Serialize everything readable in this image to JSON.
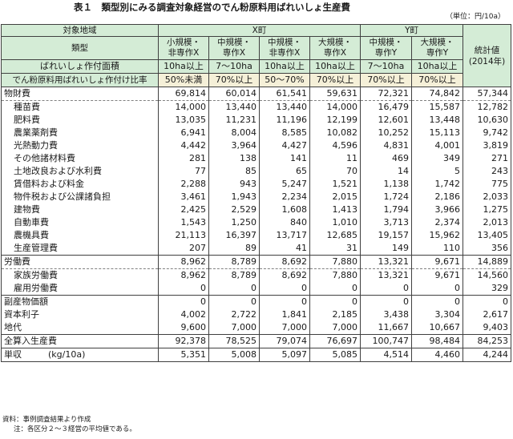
{
  "title": "表１　類型別にみる調査対象経営のでん粉原料用ばれいしょ生産費",
  "unit": "（単位：円/10a）",
  "header": {
    "region_label": "対象地域",
    "type_label": "類型",
    "area_label": "ばれいしょ作付面積",
    "ratio_label": "でん粉原料用ばれいしょ作付け比率",
    "town_x": "X町",
    "town_y": "Y町",
    "stat_label": "統計値\n(2014年)",
    "columns": [
      {
        "type": "小規模・\n非専作X",
        "area": "10ha以上",
        "ratio": "50%未満"
      },
      {
        "type": "中規模・\n専作X",
        "area": "7～10ha",
        "ratio": "70%以上"
      },
      {
        "type": "中規模・\n非専作X",
        "area": "10ha以上",
        "ratio": "50～70%"
      },
      {
        "type": "大規模・\n専作X",
        "area": "10ha以上",
        "ratio": "70%以上"
      },
      {
        "type": "中規模・\n専作Y",
        "area": "7～10ha",
        "ratio": "70%以上"
      },
      {
        "type": "大規模・\n専作Y",
        "area": "10ha以上",
        "ratio": "70%以上"
      }
    ]
  },
  "rows": [
    {
      "label": "物財費",
      "values": [
        "69,814",
        "60,014",
        "61,541",
        "59,631",
        "72,321",
        "74,842",
        "57,344"
      ]
    },
    {
      "label": "種苗費",
      "values": [
        "14,000",
        "13,440",
        "13,440",
        "14,000",
        "16,479",
        "15,587",
        "12,782"
      ]
    },
    {
      "label": "肥料費",
      "values": [
        "13,035",
        "11,231",
        "11,196",
        "12,199",
        "12,601",
        "13,448",
        "10,630"
      ]
    },
    {
      "label": "農業薬剤費",
      "values": [
        "6,941",
        "8,004",
        "8,585",
        "10,082",
        "10,252",
        "15,113",
        "9,742"
      ]
    },
    {
      "label": "光熱動力費",
      "values": [
        "4,442",
        "3,964",
        "4,427",
        "4,596",
        "4,831",
        "4,001",
        "3,819"
      ]
    },
    {
      "label": "その他諸材料費",
      "values": [
        "281",
        "138",
        "141",
        "11",
        "469",
        "349",
        "271"
      ]
    },
    {
      "label": "土地改良および水利費",
      "values": [
        "77",
        "85",
        "65",
        "70",
        "14",
        "5",
        "243"
      ]
    },
    {
      "label": "賃借料および料金",
      "values": [
        "2,288",
        "943",
        "5,247",
        "1,521",
        "1,138",
        "1,742",
        "775"
      ]
    },
    {
      "label": "物件税および公課諸負担",
      "values": [
        "3,461",
        "1,943",
        "2,234",
        "2,015",
        "1,724",
        "2,186",
        "2,033"
      ]
    },
    {
      "label": "建物費",
      "values": [
        "2,425",
        "2,529",
        "1,608",
        "1,413",
        "1,794",
        "3,966",
        "1,275"
      ]
    },
    {
      "label": "自動車費",
      "values": [
        "1,543",
        "1,250",
        "840",
        "1,010",
        "3,713",
        "2,374",
        "2,013"
      ]
    },
    {
      "label": "農機具費",
      "values": [
        "21,113",
        "16,397",
        "13,717",
        "12,685",
        "19,157",
        "15,962",
        "13,405"
      ]
    },
    {
      "label": "生産管理費",
      "values": [
        "207",
        "89",
        "41",
        "31",
        "149",
        "110",
        "356"
      ]
    },
    {
      "label": "労働費",
      "values": [
        "8,962",
        "8,789",
        "8,692",
        "7,880",
        "13,321",
        "9,671",
        "14,889"
      ]
    },
    {
      "label": "家族労働費",
      "values": [
        "8,962",
        "8,789",
        "8,692",
        "7,880",
        "13,321",
        "9,671",
        "14,560"
      ]
    },
    {
      "label": "雇用労働費",
      "values": [
        "0",
        "0",
        "0",
        "0",
        "0",
        "0",
        "329"
      ]
    },
    {
      "label": "副産物価額",
      "values": [
        "0",
        "0",
        "0",
        "0",
        "0",
        "0",
        "0"
      ]
    },
    {
      "label": "資本利子",
      "values": [
        "4,002",
        "2,722",
        "1,841",
        "2,185",
        "3,438",
        "3,304",
        "2,617"
      ]
    },
    {
      "label": "地代",
      "values": [
        "9,600",
        "7,000",
        "7,000",
        "7,000",
        "11,667",
        "10,667",
        "9,403"
      ]
    },
    {
      "label": "全算入生産費",
      "values": [
        "92,378",
        "78,525",
        "79,074",
        "76,697",
        "100,747",
        "98,484",
        "84,253"
      ]
    },
    {
      "label": "単収　　　(kg/10a)",
      "values": [
        "5,351",
        "5,008",
        "5,097",
        "5,085",
        "4,514",
        "4,460",
        "4,244"
      ]
    }
  ],
  "notes": {
    "source": "資料：事例調査結果より作成",
    "note": "注：各区分２～３経営の平均値である。"
  }
}
